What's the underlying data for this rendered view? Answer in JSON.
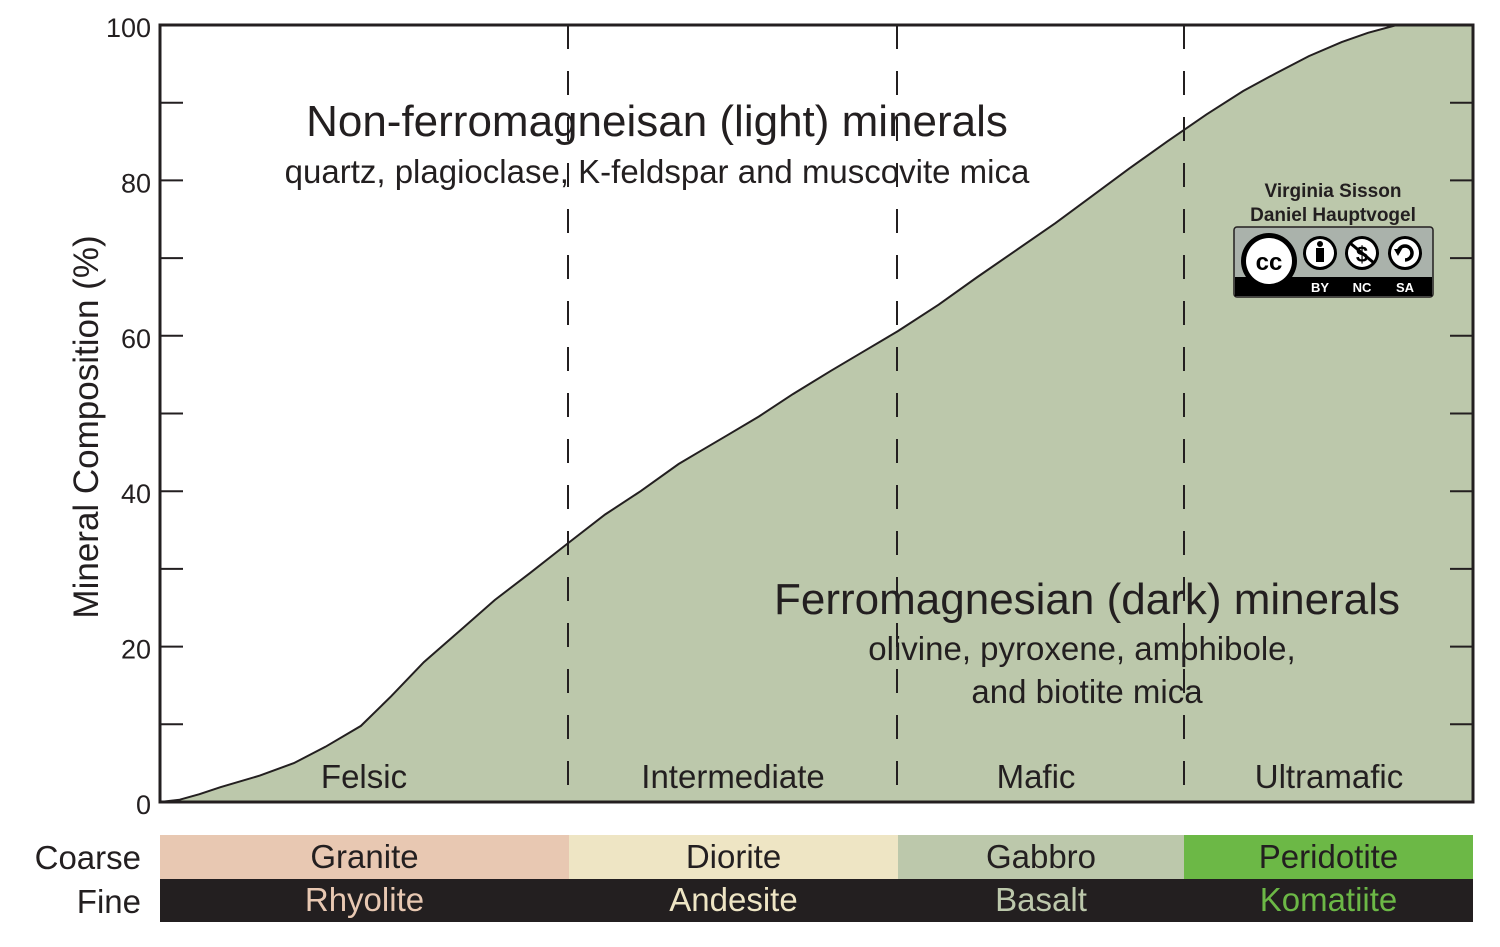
{
  "chart_data": {
    "type": "area",
    "ylabel": "Mineral Composition (%)",
    "xlabel": "",
    "title": "",
    "ylim": [
      0,
      100
    ],
    "y_ticks": [
      0,
      20,
      40,
      60,
      80,
      100
    ],
    "grid": false,
    "x_domain": [
      0,
      100
    ],
    "series": [
      {
        "name": "Ferromagnesian (dark) minerals",
        "x": [
          0,
          1.5,
          3,
          4.6,
          7.6,
          10.2,
          12.6,
          15.3,
          17.6,
          20.1,
          22.8,
          25.5,
          28.2,
          31.0,
          33.9,
          36.6,
          39.5,
          41.0,
          43.2,
          45.6,
          48.2,
          51.1,
          53.6,
          56.2,
          59.3,
          62.2,
          65.2,
          68.2,
          71.0,
          73.8,
          76.7,
          79.7,
          82.5,
          85.0,
          87.5,
          90.0,
          92.0,
          94.2,
          97.0,
          100
        ],
        "y": [
          0,
          0.3,
          1.0,
          1.9,
          3.4,
          5.0,
          7.1,
          9.8,
          13.6,
          18.0,
          22.0,
          26.0,
          29.5,
          33.2,
          37.0,
          40.0,
          43.5,
          45.0,
          47.2,
          49.6,
          52.5,
          55.5,
          58.0,
          60.6,
          64.0,
          67.5,
          71.0,
          74.5,
          78.0,
          81.5,
          85.0,
          88.5,
          91.5,
          93.8,
          96.0,
          97.8,
          99.0,
          100,
          100,
          100
        ]
      }
    ],
    "region_labels": [
      "Felsic",
      "Intermediate",
      "Mafic",
      "Ultramafic"
    ],
    "annotations": {
      "light_title": "Non-ferromagneisan (light) minerals",
      "light_subtitle": "quartz, plagioclase, K-feldspar and muscovite mica",
      "dark_title": "Ferromagnesian (dark) minerals",
      "dark_line1": "olivine, pyroxene, amphibole,",
      "dark_line2": "and biotite mica"
    },
    "colors": {
      "dark_fill": "#bcc8ab",
      "light_fill": "#ffffff",
      "axis": "#231f20"
    }
  },
  "credits": {
    "author1": "Virginia Sisson",
    "author2": "Daniel Hauptvogel",
    "license_labels": [
      "BY",
      "NC",
      "SA"
    ],
    "cc_text": "cc"
  },
  "rock_table": {
    "row_labels": [
      "Coarse",
      "Fine"
    ],
    "coarse": [
      {
        "name": "Granite",
        "bg": "#e8c8b2",
        "fg": "#231f20"
      },
      {
        "name": "Diorite",
        "bg": "#eee5c4",
        "fg": "#231f20"
      },
      {
        "name": "Gabbro",
        "bg": "#bcc8ab",
        "fg": "#231f20"
      },
      {
        "name": "Peridotite",
        "bg": "#6cb846",
        "fg": "#231f20"
      }
    ],
    "fine": [
      {
        "name": "Rhyolite",
        "bg": "#231f20",
        "fg": "#e8c8b2"
      },
      {
        "name": "Andesite",
        "bg": "#231f20",
        "fg": "#eee5c4"
      },
      {
        "name": "Basalt",
        "bg": "#231f20",
        "fg": "#bcc8ab"
      },
      {
        "name": "Komatiite",
        "bg": "#231f20",
        "fg": "#6cb846"
      }
    ]
  }
}
